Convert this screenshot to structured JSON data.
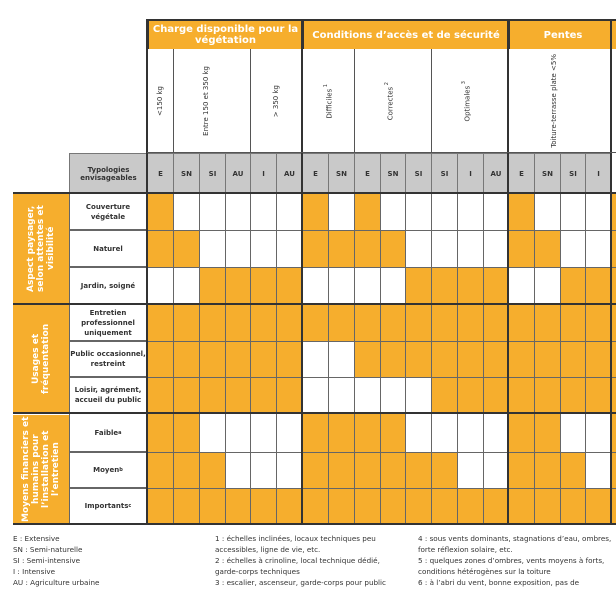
{
  "header_groups": [
    {
      "label": "Charge disponible pour la végétation"
    },
    {
      "label": "Conditions d’accès et de sécurité"
    },
    {
      "label": "Pentes"
    }
  ],
  "subheaders": [
    {
      "label": "<150 kg",
      "sup": ""
    },
    {
      "label": "Entre 150 et 350 kg",
      "sup": ""
    },
    {
      "label": "> 350 kg",
      "sup": ""
    },
    {
      "label": "Difficiles",
      "sup": "1"
    },
    {
      "label": "Correctes",
      "sup": "2"
    },
    {
      "label": "Optimales",
      "sup": "3"
    },
    {
      "label": "Toiture-terrasse plate <5%",
      "sup": ""
    }
  ],
  "typologies_label": "Typologies envisageables",
  "typologies": [
    "E",
    "SN",
    "SI",
    "AU",
    "I",
    "AU",
    "E",
    "SN",
    "E",
    "SN",
    "SI",
    "SI",
    "I",
    "AU",
    "E",
    "SN",
    "SI",
    "I"
  ],
  "categories": [
    {
      "label": "Aspect paysager, selon attentes et visibilité"
    },
    {
      "label": "Usages et fréquentation"
    },
    {
      "label": "Moyens financiers et humains pour l’installation et l’entretien"
    }
  ],
  "rows": [
    {
      "label": "Couverture végétale",
      "sup": "",
      "cells": [
        1,
        0,
        0,
        0,
        0,
        0,
        1,
        0,
        1,
        0,
        0,
        0,
        0,
        0,
        1,
        0,
        0,
        0
      ]
    },
    {
      "label": "Naturel",
      "sup": "",
      "cells": [
        1,
        1,
        0,
        0,
        0,
        0,
        1,
        1,
        1,
        1,
        0,
        0,
        0,
        0,
        1,
        1,
        0,
        0
      ]
    },
    {
      "label": "Jardin, soigné",
      "sup": "",
      "cells": [
        0,
        0,
        1,
        1,
        1,
        1,
        0,
        0,
        0,
        0,
        1,
        1,
        1,
        1,
        0,
        0,
        1,
        1
      ]
    },
    {
      "label": "Entretien professionnel uniquement",
      "sup": "",
      "cells": [
        1,
        1,
        1,
        1,
        1,
        1,
        1,
        1,
        1,
        1,
        1,
        1,
        1,
        1,
        1,
        1,
        1,
        1
      ]
    },
    {
      "label": "Public occasionnel, restreint",
      "sup": "",
      "cells": [
        1,
        1,
        1,
        1,
        1,
        1,
        0,
        0,
        1,
        1,
        1,
        1,
        1,
        1,
        1,
        1,
        1,
        1
      ]
    },
    {
      "label": "Loisir, agrément, accueil du public",
      "sup": "",
      "cells": [
        1,
        1,
        1,
        1,
        1,
        1,
        0,
        0,
        0,
        0,
        0,
        1,
        1,
        1,
        1,
        1,
        1,
        1
      ]
    },
    {
      "label": "Faible",
      "sup": "a",
      "cells": [
        1,
        1,
        0,
        0,
        0,
        0,
        1,
        1,
        1,
        1,
        0,
        0,
        0,
        0,
        1,
        1,
        0,
        0
      ]
    },
    {
      "label": "Moyen",
      "sup": "b",
      "cells": [
        1,
        1,
        1,
        0,
        0,
        0,
        1,
        1,
        1,
        1,
        1,
        1,
        0,
        0,
        1,
        1,
        1,
        0
      ]
    },
    {
      "label": "Importants",
      "sup": "c",
      "cells": [
        1,
        1,
        1,
        1,
        1,
        1,
        1,
        1,
        1,
        1,
        1,
        1,
        1,
        1,
        1,
        1,
        1,
        1
      ]
    }
  ],
  "legend": {
    "abbreviations": [
      "E : Extensive",
      "SN : Semi-naturelle",
      "SI : Semi-intensive",
      "I : Intensive",
      "AU : Agriculture urbaine"
    ],
    "notes_a": [
      "1 : échelles inclinées, locaux techniques peu accessibles, ligne de vie, etc.",
      "2 : échelles à crinoline, local technique dédié, garde-corps techniques",
      "3 : escalier, ascenseur, garde-corps pour public"
    ],
    "notes_b": [
      "4 : sous vents dominants, stagnations d’eau, ombres, forte réflexion solaire, etc.",
      "5 : quelques zones d’ombres, vents moyens à forts, conditions hétérogènes sur la toiture",
      "6 : à l’abri du vent, bonne exposition, pas de"
    ]
  },
  "colors": {
    "filled": "#f6ae2d",
    "empty": "#ffffff",
    "header_gray": "#c9c9c9"
  }
}
